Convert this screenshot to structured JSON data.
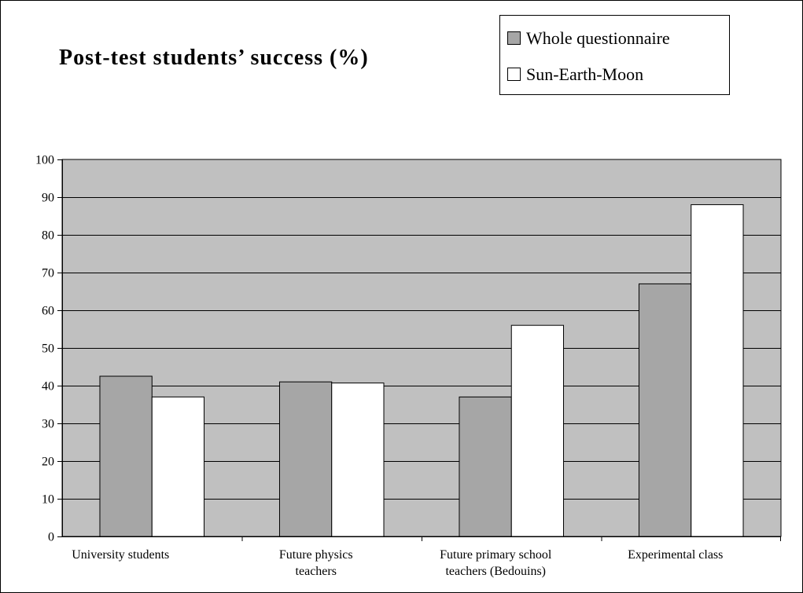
{
  "chart_data": {
    "type": "bar",
    "title": "Post-test students’ success (%)",
    "xlabel": "",
    "ylabel": "",
    "ylim": [
      0,
      100
    ],
    "yticks": [
      0,
      10,
      20,
      30,
      40,
      50,
      60,
      70,
      80,
      90,
      100
    ],
    "grid": true,
    "legend_position": "top-right",
    "categories": [
      [
        "University students"
      ],
      [
        "Future physics",
        "teachers"
      ],
      [
        "Future primary school",
        "teachers (Bedouins)"
      ],
      [
        "Experimental class"
      ]
    ],
    "series": [
      {
        "name": "Whole questionnaire",
        "color": "#a6a6a6",
        "values": [
          42.5,
          41,
          37,
          67
        ]
      },
      {
        "name": "Sun-Earth-Moon",
        "color": "#ffffff",
        "values": [
          37,
          40.7,
          56,
          88
        ]
      }
    ],
    "plot_background": "#c0c0c0"
  }
}
